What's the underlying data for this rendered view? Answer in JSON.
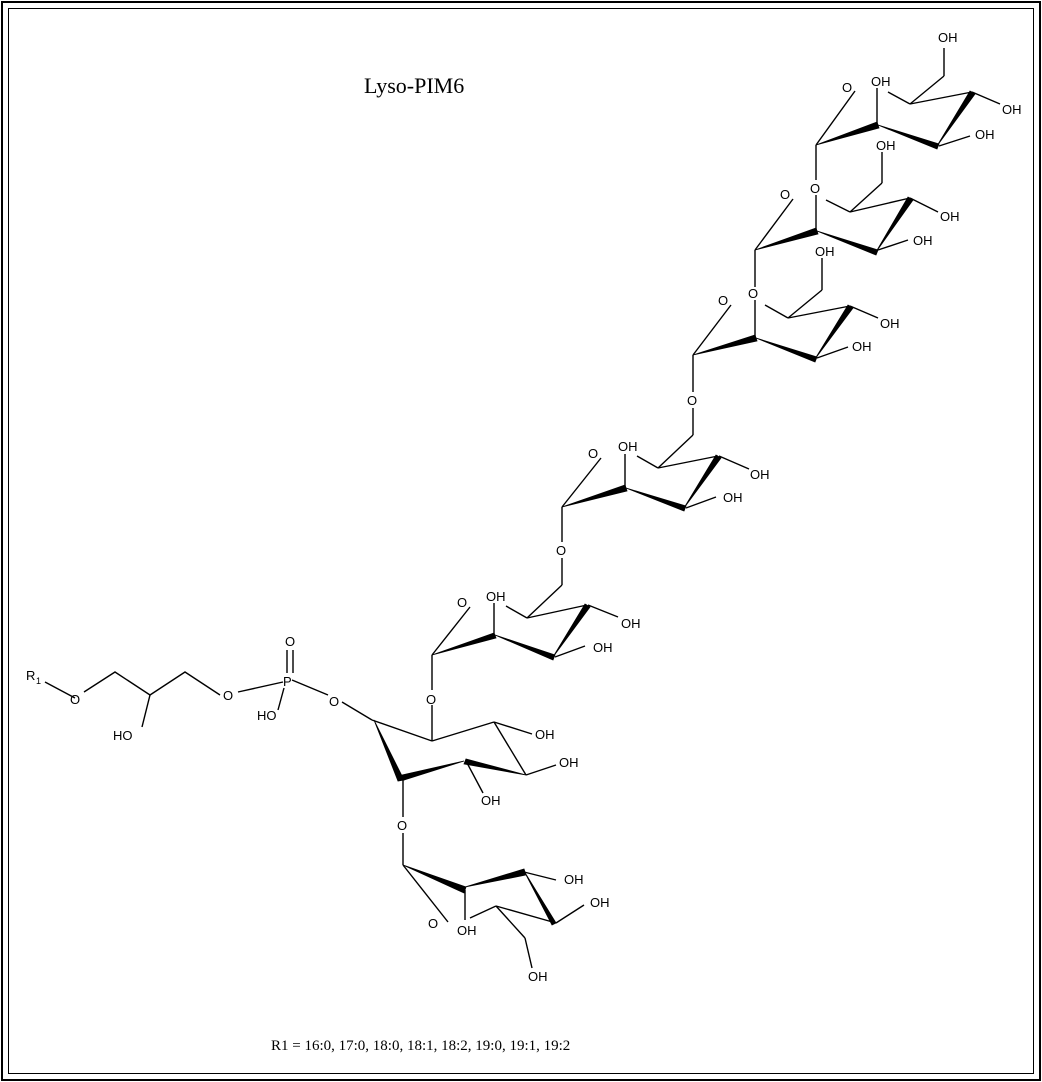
{
  "title": "Lyso-PIM6",
  "caption": "R1 = 16:0, 17:0, 18:0, 18:1, 18:2, 19:0, 19:1, 19:2",
  "labels": {
    "oh": "OH",
    "ho": "HO",
    "o": "O",
    "p": "P",
    "r": "R",
    "r_sub": "1"
  }
}
